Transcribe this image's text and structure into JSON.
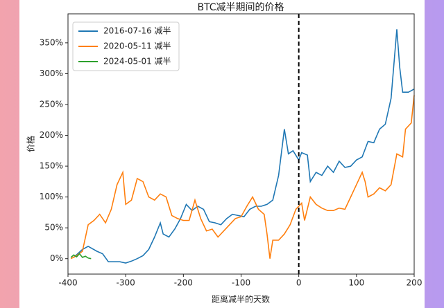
{
  "chart_data": {
    "type": "line",
    "title": "BTC减半期间的价格",
    "x_label": "距离减半的天数",
    "y_label": "价格",
    "xlim": [
      -400,
      200
    ],
    "xticks": [
      -400,
      -300,
      -200,
      -100,
      0,
      100,
      200
    ],
    "ylim": [
      -25,
      397
    ],
    "yticks": [
      {
        "value": 0,
        "label": "0%"
      },
      {
        "value": 50,
        "label": "50%"
      },
      {
        "value": 100,
        "label": "100%"
      },
      {
        "value": 150,
        "label": "150%"
      },
      {
        "value": 200,
        "label": "200%"
      },
      {
        "value": 250,
        "label": "250%"
      },
      {
        "value": 300,
        "label": "300%"
      },
      {
        "value": 350,
        "label": "350%"
      }
    ],
    "vline": 0,
    "legend": "upper left",
    "series": [
      {
        "name": "2016-07-16 减半",
        "color": "#1f77b4",
        "x": [
          -390,
          -375,
          -365,
          -350,
          -340,
          -330,
          -310,
          -300,
          -290,
          -280,
          -270,
          -260,
          -250,
          -240,
          -235,
          -225,
          -215,
          -205,
          -195,
          -185,
          -175,
          -165,
          -155,
          -145,
          -135,
          -125,
          -115,
          -105,
          -95,
          -85,
          -75,
          -65,
          -55,
          -45,
          -35,
          -25,
          -18,
          -10,
          0,
          5,
          15,
          20,
          30,
          40,
          50,
          60,
          70,
          80,
          90,
          100,
          110,
          120,
          130,
          140,
          150,
          160,
          170,
          175,
          180,
          190,
          200
        ],
        "values": [
          2,
          15,
          20,
          12,
          8,
          -5,
          -5,
          -7,
          -4,
          0,
          5,
          15,
          35,
          58,
          40,
          35,
          48,
          65,
          88,
          78,
          85,
          80,
          60,
          58,
          55,
          65,
          72,
          70,
          68,
          80,
          85,
          85,
          88,
          95,
          135,
          210,
          170,
          175,
          160,
          172,
          168,
          125,
          140,
          135,
          150,
          140,
          158,
          148,
          150,
          160,
          165,
          190,
          188,
          210,
          218,
          260,
          372,
          310,
          270,
          270,
          275
        ]
      },
      {
        "name": "2020-05-11 减半",
        "color": "#ff7f0e",
        "x": [
          -395,
          -385,
          -375,
          -365,
          -355,
          -345,
          -335,
          -325,
          -315,
          -305,
          -300,
          -290,
          -280,
          -270,
          -260,
          -250,
          -240,
          -230,
          -220,
          -210,
          -200,
          -190,
          -180,
          -170,
          -160,
          -150,
          -140,
          -130,
          -120,
          -110,
          -100,
          -90,
          -80,
          -70,
          -60,
          -55,
          -50,
          -45,
          -35,
          -25,
          -15,
          -5,
          5,
          10,
          20,
          30,
          40,
          50,
          60,
          70,
          80,
          90,
          100,
          110,
          115,
          120,
          130,
          140,
          150,
          160,
          170,
          180,
          185,
          195,
          200
        ],
        "values": [
          0,
          5,
          12,
          55,
          62,
          72,
          58,
          80,
          120,
          140,
          88,
          95,
          130,
          125,
          100,
          95,
          105,
          100,
          70,
          65,
          62,
          62,
          95,
          65,
          45,
          48,
          35,
          45,
          55,
          65,
          68,
          85,
          100,
          80,
          72,
          40,
          0,
          30,
          30,
          40,
          55,
          80,
          90,
          62,
          100,
          88,
          82,
          78,
          78,
          82,
          80,
          100,
          120,
          140,
          125,
          100,
          105,
          115,
          110,
          120,
          170,
          165,
          210,
          220,
          265
        ]
      },
      {
        "name": "2024-05-01 减半",
        "color": "#2ca02c",
        "x": [
          -395,
          -390,
          -385,
          -380,
          -375,
          -370,
          -365,
          -360
        ],
        "values": [
          2,
          6,
          3,
          8,
          2,
          4,
          1,
          0
        ]
      }
    ]
  }
}
